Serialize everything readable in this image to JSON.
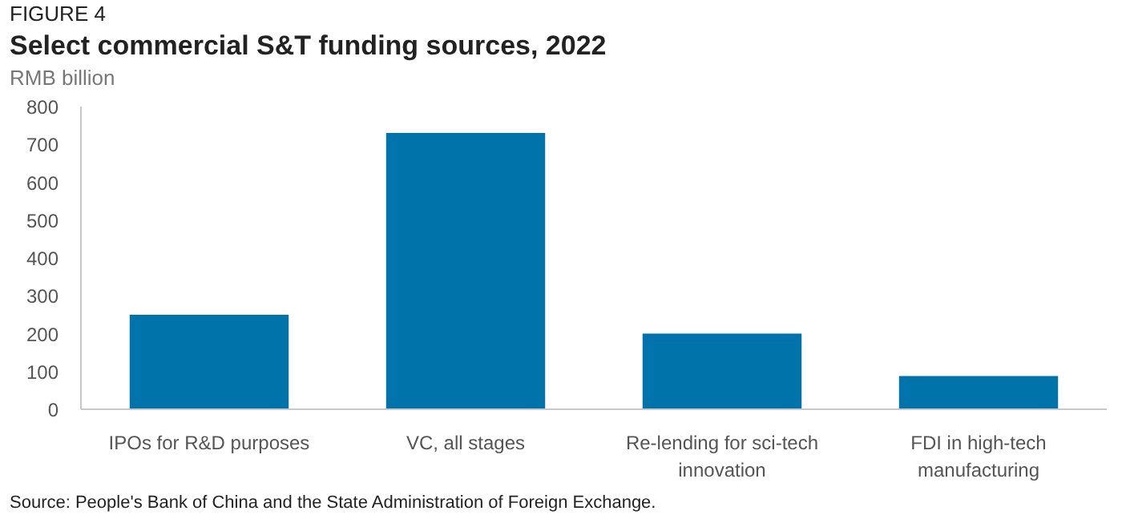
{
  "chart_data": {
    "type": "bar",
    "title": "Select commercial S&T funding sources, 2022",
    "ylabel": "RMB billion",
    "annotations": [
      "FIGURE 4",
      "Source: People's Bank of China and the State Administration of Foreign Exchange."
    ],
    "categories": [
      "IPOs for R&D purposes",
      "VC, all stages",
      "Re-lending for sci-tech innovation",
      "FDI in high-tech manufacturing"
    ],
    "values": [
      250,
      730,
      200,
      88
    ],
    "color": "#0073aa",
    "ylim": [
      0,
      800
    ],
    "yticks": [
      0,
      100,
      200,
      300,
      400,
      500,
      600,
      700,
      800
    ],
    "grid": false
  }
}
